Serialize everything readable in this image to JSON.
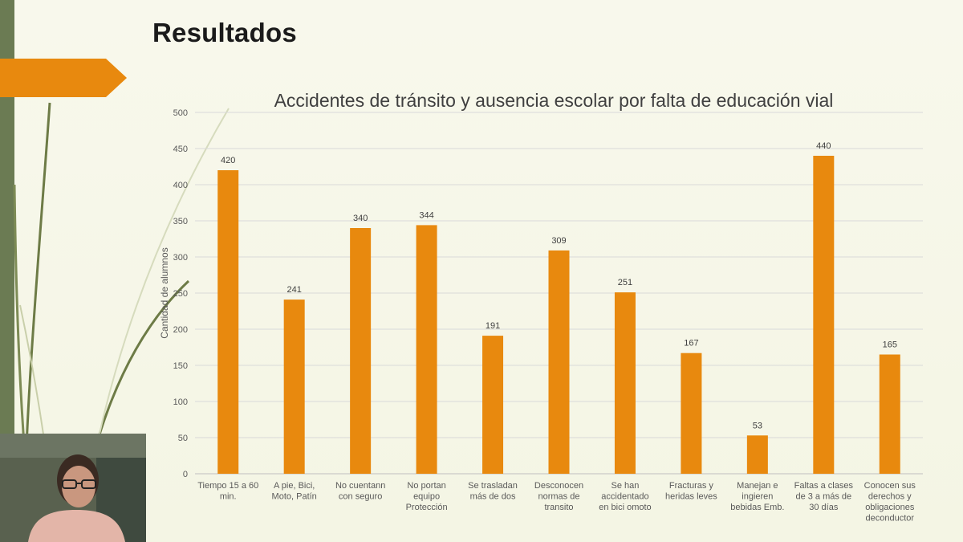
{
  "slide": {
    "title": "Resultados",
    "accent_color": "#E8890E",
    "strip_color": "#6B7B53"
  },
  "chart_data": {
    "type": "bar",
    "title": "Accidentes de tránsito y ausencia escolar  por  falta de educación vial",
    "ylabel": "Cantidad de alumnos",
    "xlabel": "",
    "ylim": [
      0,
      500
    ],
    "yticks": [
      0,
      50,
      100,
      150,
      200,
      250,
      300,
      350,
      400,
      450,
      500
    ],
    "grid": true,
    "bar_color": "#E8890E",
    "categories": [
      [
        "Tiempo 15 a 60",
        "min."
      ],
      [
        "A pie, Bici,",
        "Moto,  Patín"
      ],
      [
        "No cuentann",
        "con seguro"
      ],
      [
        "No portan",
        "equipo",
        "Protección"
      ],
      [
        "Se trasladan",
        "más de dos"
      ],
      [
        "Desconocen",
        "normas de",
        "transito"
      ],
      [
        "Se han",
        "accidentado",
        "en bici omoto"
      ],
      [
        "Fracturas y",
        "heridas leves"
      ],
      [
        "Manejan e",
        "ingieren",
        "bebidas Emb."
      ],
      [
        "Faltas a clases",
        "de 3 a más de",
        "30 días"
      ],
      [
        "Conocen sus",
        "derechos y",
        "obligaciones",
        "deconductor"
      ]
    ],
    "values": [
      420,
      241,
      340,
      344,
      191,
      309,
      251,
      167,
      53,
      440,
      165
    ]
  }
}
